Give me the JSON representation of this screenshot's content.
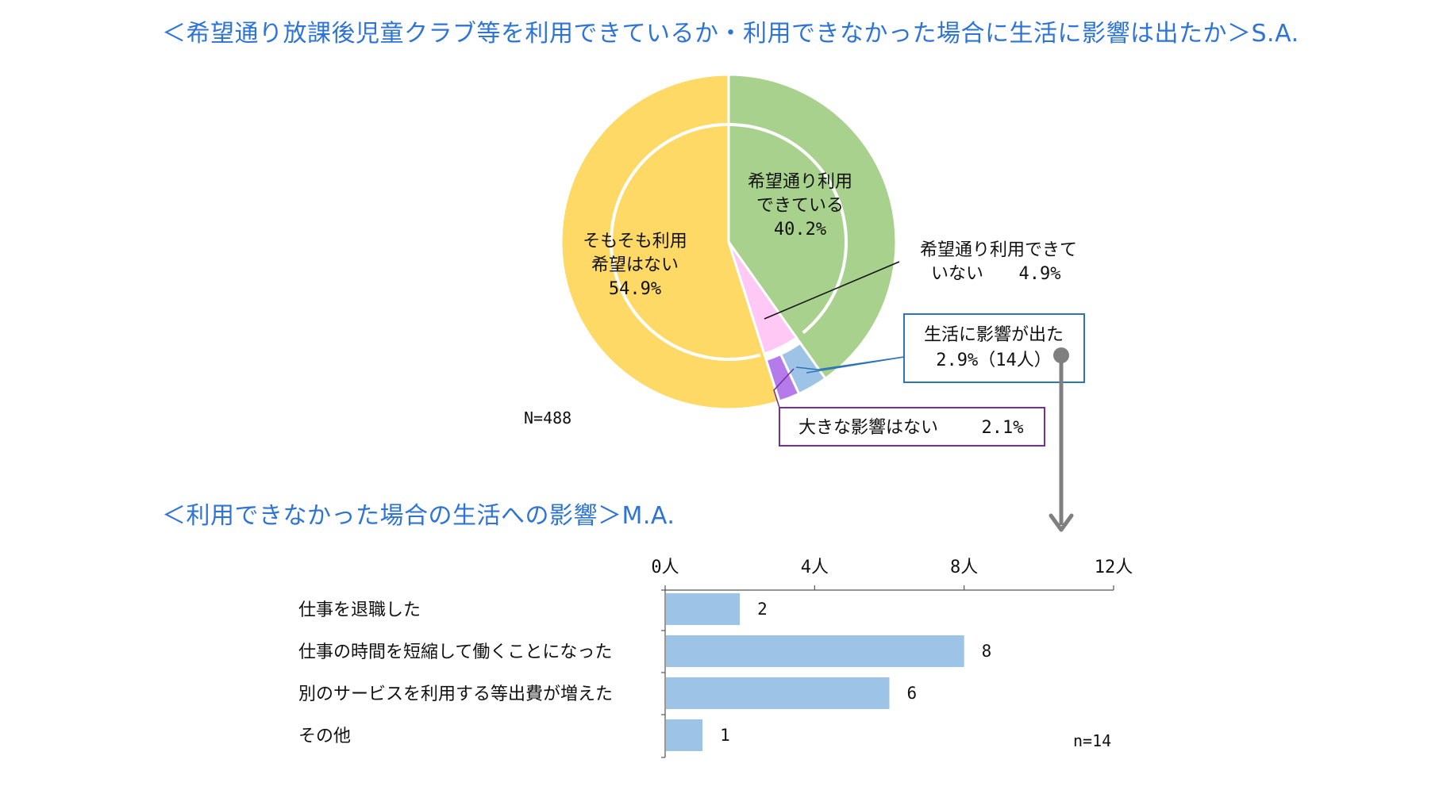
{
  "titles": {
    "main": "＜希望通り放課後児童クラブ等を利用できているか・利用できなかった場合に生活に影響は出たか＞S.A.",
    "bar": "＜利用できなかった場合の生活への影響＞M.A."
  },
  "chart_data": [
    {
      "type": "pie",
      "total_label": "N=488",
      "slices": [
        {
          "lines": [
            "希望通り利用",
            "できている"
          ],
          "value_text": "40.2%",
          "value": 40.2,
          "color": "#a9d18e"
        },
        {
          "lines": [
            "希望通り利用できて",
            "いない"
          ],
          "value_text": "4.9%",
          "value": 4.9,
          "color": "#ffc8f5",
          "sub_slices": [
            {
              "lines": [
                "生活に影響が出た"
              ],
              "value_text": "2.9%（14人）",
              "value": 2.9,
              "color": "#9dc3e6",
              "border": "#2e75b6"
            },
            {
              "lines": [
                "大きな影響はない"
              ],
              "value_text": "2.1%",
              "value": 2.1,
              "color": "#b57bea",
              "border": "#7030a0"
            }
          ]
        },
        {
          "lines": [
            "そもそも利用",
            "希望はない"
          ],
          "value_text": "54.9%",
          "value": 54.9,
          "color": "#ffd966"
        }
      ]
    },
    {
      "type": "bar",
      "orientation": "horizontal",
      "categories": [
        "仕事を退職した",
        "仕事の時間を短縮して働くことになった",
        "別のサービスを利用する等出費が増えた",
        "その他"
      ],
      "values": [
        2,
        8,
        6,
        1
      ],
      "value_labels": [
        "2",
        "8",
        "6",
        "1"
      ],
      "xlim": [
        0,
        12
      ],
      "xticks": [
        0,
        4,
        8,
        12
      ],
      "xtick_labels": [
        "0人",
        "4人",
        "8人",
        "12人"
      ],
      "n_label": "n=14",
      "color": "#9dc3e6"
    }
  ]
}
